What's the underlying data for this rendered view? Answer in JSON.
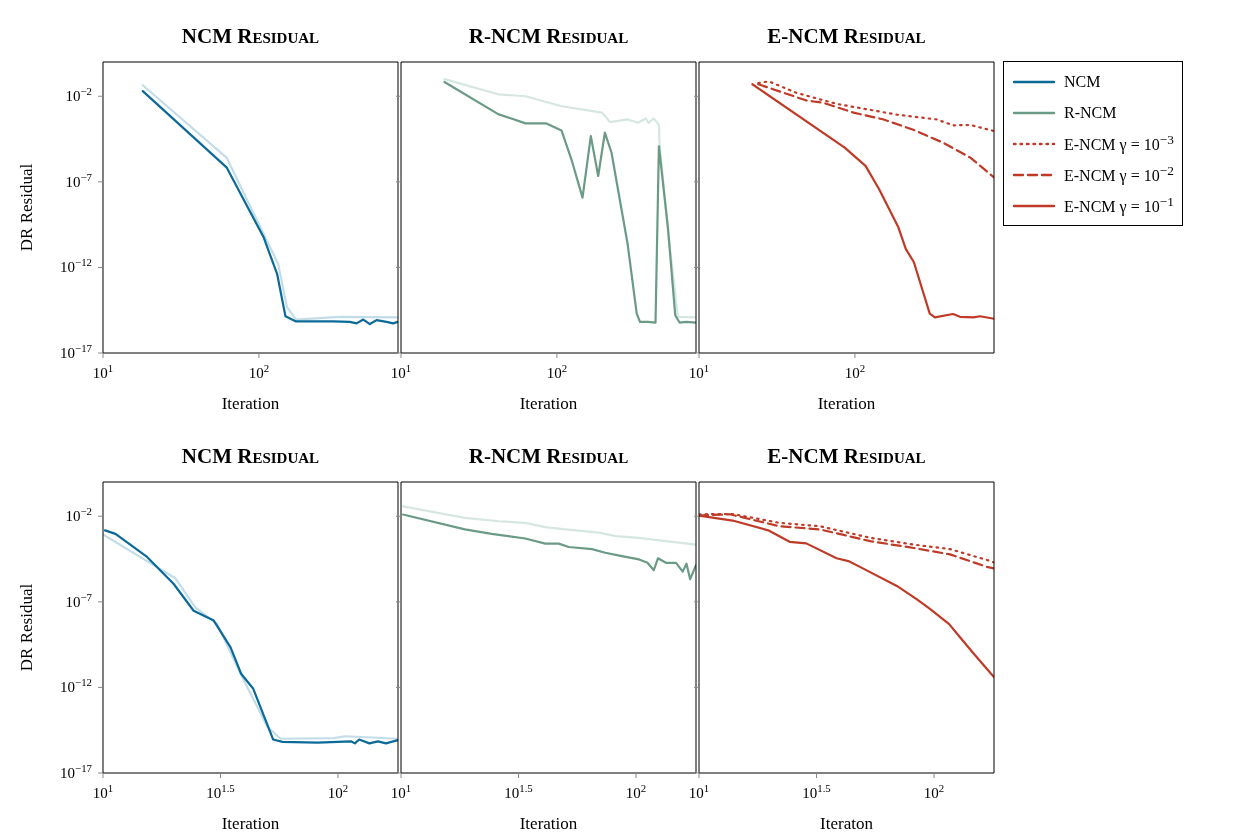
{
  "chart_data": [
    {
      "type": "line",
      "title": "NCM Residual",
      "xlabel": "Iteration",
      "ylabel": "DR Residual",
      "log": "xy",
      "legend": "right",
      "xlim": [
        10,
        780
      ],
      "ylim": [
        1e-17,
        1
      ],
      "xticks": [
        {
          "value": 10,
          "label": "10$^{1}$"
        },
        {
          "value": 100,
          "label": "10$^{2}$"
        }
      ],
      "yticks": [
        {
          "value": 1e-17,
          "label": "10$^{−17}$"
        },
        {
          "value": 1e-12,
          "label": "10$^{−12}$"
        },
        {
          "value": 1e-07,
          "label": "10$^{−7}$"
        },
        {
          "value": 0.01,
          "label": "10$^{−2}$"
        }
      ],
      "series": [
        {
          "color": "#c3dde8",
          "line_style": "solid",
          "x": [
            18,
            62,
            133,
            151,
            173,
            330,
            780
          ],
          "values": [
            0.044,
            2.6e-06,
            1.6e-12,
            5e-15,
            9e-16,
            1.3e-15,
            1.2e-15
          ]
        },
        {
          "name": "NCM",
          "color": "#0b6a97",
          "line_style": "solid",
          "x": [
            18,
            62,
            107,
            131,
            148,
            173,
            299,
            383,
            423,
            467,
            515,
            568,
            658,
            726,
            780
          ],
          "values": [
            0.02,
            7e-07,
            6e-11,
            4e-13,
            1.4e-15,
            7e-16,
            7e-16,
            6.6e-16,
            5.4e-16,
            9e-16,
            4.9e-16,
            8.3e-16,
            6.6e-16,
            5.4e-16,
            6.6e-16
          ]
        }
      ]
    },
    {
      "type": "line",
      "title": "R-NCM Residual",
      "xlabel": "Iteration",
      "log": "xy",
      "legend": "right",
      "tick_labels": "x",
      "xlim": [
        10,
        780
      ],
      "ylim": [
        1e-17,
        1
      ],
      "xticks": [
        {
          "value": 10,
          "label": "10$^{1}$"
        },
        {
          "value": 100,
          "label": "10$^{2}$"
        }
      ],
      "yticks": [
        {
          "value": 1e-17,
          "label": null
        },
        {
          "value": 1e-12,
          "label": null
        },
        {
          "value": 1e-07,
          "label": null
        },
        {
          "value": 0.01,
          "label": null
        }
      ],
      "series": [
        {
          "color": "#d6e6e0",
          "line_style": "solid",
          "x": [
            19,
            42,
            63,
            107,
            195,
            219,
            284,
            331,
            372,
            387,
            417,
            451,
            455,
            515,
            597,
            780
          ],
          "values": [
            0.1,
            0.013,
            0.01,
            0.0026,
            0.0011,
            0.00031,
            0.00044,
            0.00028,
            0.0005,
            0.00028,
            0.0005,
            0.00022,
            1.9e-05,
            1.5e-10,
            1.3e-15,
            1.2e-15
          ]
        },
        {
          "name": "R-NCM",
          "color": "#6b9a86",
          "line_style": "solid",
          "x": [
            19,
            42,
            63,
            85,
            107,
            124,
            146,
            165,
            184,
            203,
            224,
            284,
            325,
            341,
            383,
            429,
            451,
            515,
            574,
            612,
            677,
            780
          ],
          "values": [
            0.068,
            0.0009,
            0.00026,
            0.00026,
            0.0001,
            2e-06,
            1.2e-08,
            4.7e-05,
            2.2e-07,
            7.4e-05,
            5e-06,
            2.4e-11,
            2e-15,
            6.6e-16,
            6.6e-16,
            6e-16,
            1.2e-05,
            2.2e-10,
            1.6e-15,
            6e-16,
            6.6e-16,
            6e-16
          ]
        }
      ]
    },
    {
      "type": "line",
      "title": "E-NCM Residual",
      "xlabel": "Iteration",
      "log": "xy",
      "legend": "right",
      "tick_labels": "x",
      "xlim": [
        10,
        780
      ],
      "ylim": [
        1e-17,
        1
      ],
      "xticks": [
        {
          "value": 10,
          "label": "10$^{1}$"
        },
        {
          "value": 100,
          "label": "10$^{2}$"
        }
      ],
      "yticks": [
        {
          "value": 1e-17,
          "label": null
        },
        {
          "value": 1e-12,
          "label": null
        },
        {
          "value": 1e-07,
          "label": null
        },
        {
          "value": 0.01,
          "label": null
        }
      ],
      "series": [
        {
          "name": "E-NCM γ = 10$^{−3}$",
          "color": "#bf3a27",
          "line_style": "dotted",
          "x": [
            24,
            28,
            42,
            76,
            185,
            334,
            427,
            550,
            780
          ],
          "values": [
            0.059,
            0.074,
            0.016,
            0.0036,
            0.00085,
            0.00044,
            0.0002,
            0.00021,
            9.3e-05
          ]
        },
        {
          "name": "E-NCM γ = 10$^{−2}$",
          "color": "#bf3a27",
          "line_style": "dashed",
          "x": [
            24,
            49,
            63,
            98,
            151,
            237,
            369,
            550,
            780
          ],
          "values": [
            0.05,
            0.0056,
            0.0041,
            0.0011,
            0.00045,
            0.00011,
            1.9e-05,
            2.6e-06,
            1.8e-07
          ]
        },
        {
          "name": "E-NCM γ = 10$^{−1}$",
          "color": "#bf3a27",
          "line_style": "solid",
          "x": [
            22,
            86,
            117,
            143,
            190,
            212,
            239,
            302,
            326,
            426,
            472,
            575,
            635,
            780
          ],
          "values": [
            0.05,
            1e-05,
            8.5e-07,
            3.7e-08,
            2.2e-10,
            1.2e-11,
            2e-12,
            2e-15,
            1.2e-15,
            1.9e-15,
            1.3e-15,
            1.2e-15,
            1.4e-15,
            1e-15
          ]
        }
      ]
    },
    {
      "type": "line",
      "title": "NCM Residual",
      "xlabel": "Iteration",
      "ylabel": "DR Residual",
      "log": "xy",
      "xlim": [
        10,
        180
      ],
      "ylim": [
        1e-17,
        1
      ],
      "xticks": [
        {
          "value": 10,
          "label": "10$^{1}$"
        },
        {
          "value": 31.62,
          "label": "10$^{1.5}$"
        },
        {
          "value": 100,
          "label": "10$^{2}$"
        }
      ],
      "yticks": [
        {
          "value": 1e-17,
          "label": "10$^{−17}$"
        },
        {
          "value": 1e-12,
          "label": "10$^{−12}$"
        },
        {
          "value": 1e-07,
          "label": "10$^{−7}$"
        },
        {
          "value": 0.01,
          "label": "10$^{−2}$"
        }
      ],
      "series": [
        {
          "color": "#c3dde8",
          "line_style": "solid",
          "x": [
            10,
            15.4,
            20.3,
            24.7,
            30.6,
            38.5,
            50,
            57,
            96,
            107,
            180
          ],
          "values": [
            0.00085,
            2.4e-05,
            2.4e-06,
            4.7e-08,
            5e-09,
            6.3e-12,
            5e-15,
            1e-15,
            1.1e-15,
            1.4e-15,
            1e-15
          ]
        },
        {
          "color": "#0b6a97",
          "line_style": "solid",
          "x": [
            10.2,
            11.3,
            15.4,
            20,
            24.3,
            29.6,
            34.9,
            38.7,
            43.6,
            53,
            58,
            82,
            114,
            118,
            123,
            136,
            148,
            160,
            180
          ],
          "values": [
            0.0015,
            0.00093,
            4.2e-05,
            1.1e-06,
            3e-08,
            8e-09,
            2.2e-10,
            6.3e-12,
            8.3e-13,
            9e-16,
            6.6e-16,
            6e-16,
            7e-16,
            5.4e-16,
            9e-16,
            5.4e-16,
            7e-16,
            5.4e-16,
            8.3e-16
          ]
        }
      ]
    },
    {
      "type": "line",
      "title": "R-NCM Residual",
      "xlabel": "Iteration",
      "log": "xy",
      "tick_labels": "x",
      "xlim": [
        10,
        180
      ],
      "ylim": [
        1e-17,
        1
      ],
      "xticks": [
        {
          "value": 10,
          "label": "10$^{1}$"
        },
        {
          "value": 31.62,
          "label": "10$^{1.5}$"
        },
        {
          "value": 100,
          "label": "10$^{2}$"
        }
      ],
      "yticks": [
        {
          "value": 1e-17,
          "label": null
        },
        {
          "value": 1e-12,
          "label": null
        },
        {
          "value": 1e-07,
          "label": null
        },
        {
          "value": 0.01,
          "label": null
        }
      ],
      "series": [
        {
          "color": "#d6e6e0",
          "line_style": "solid",
          "x": [
            10.2,
            18.7,
            26,
            33.8,
            41.1,
            50,
            69.5,
            82,
            103,
            134,
            180
          ],
          "values": [
            0.038,
            0.008,
            0.0051,
            0.0041,
            0.0023,
            0.0017,
            0.0011,
            0.00069,
            0.00055,
            0.00035,
            0.00022
          ]
        },
        {
          "color": "#6b9a86",
          "line_style": "solid",
          "x": [
            10.2,
            18.7,
            24.3,
            33.8,
            41.1,
            46.9,
            51.7,
            65,
            74,
            87,
            103,
            112,
            119,
            124,
            134,
            148,
            158,
            164,
            170,
            180
          ],
          "values": [
            0.0126,
            0.0017,
            0.00093,
            0.0005,
            0.00025,
            0.00025,
            0.00016,
            0.00012,
            7.4e-05,
            4.7e-05,
            3e-05,
            1.9e-05,
            7e-06,
            3.5e-05,
            1.9e-05,
            1.9e-05,
            5.8e-06,
            1.7e-05,
            2.1e-06,
            1.4e-05
          ]
        }
      ]
    },
    {
      "type": "line",
      "title": "E-NCM Residual",
      "xlabel": "Iteraton",
      "log": "xy",
      "tick_labels": "x",
      "xlim": [
        10,
        180
      ],
      "ylim": [
        1e-17,
        1
      ],
      "xticks": [
        {
          "value": 10,
          "label": "10$^{1}$"
        },
        {
          "value": 31.62,
          "label": "10$^{1.5}$"
        },
        {
          "value": 100,
          "label": "10$^{2}$"
        }
      ],
      "yticks": [
        {
          "value": 1e-17,
          "label": null
        },
        {
          "value": 1e-12,
          "label": null
        },
        {
          "value": 1e-07,
          "label": null
        },
        {
          "value": 0.01,
          "label": null
        }
      ],
      "series": [
        {
          "color": "#bf3a27",
          "line_style": "dotted",
          "x": [
            10,
            13.9,
            22,
            32.7,
            53.5,
            82,
            117,
            174,
            180
          ],
          "values": [
            0.013,
            0.0135,
            0.0041,
            0.0026,
            0.00055,
            0.00022,
            0.00012,
            2.4e-05,
            2e-05
          ]
        },
        {
          "color": "#bf3a27",
          "line_style": "dashed",
          "x": [
            10,
            13.5,
            22,
            32.7,
            53.5,
            82,
            117,
            168,
            180
          ],
          "values": [
            0.011,
            0.013,
            0.0026,
            0.0017,
            0.00035,
            0.00014,
            5.9e-05,
            1.1e-05,
            9e-06
          ]
        },
        {
          "color": "#bf3a27",
          "line_style": "solid",
          "x": [
            10,
            13.9,
            19.7,
            24.3,
            28.6,
            38.5,
            43.2,
            48.4,
            69.5,
            84.6,
            96.4,
            116,
            129,
            148,
            168,
            180
          ],
          "values": [
            0.011,
            0.0056,
            0.0015,
            0.00032,
            0.00026,
            3.5e-05,
            2.4e-05,
            1.1e-05,
            8.5e-07,
            1.4e-07,
            3.8e-08,
            5e-09,
            8.5e-10,
            9e-11,
            1.2e-11,
            4e-12
          ]
        }
      ]
    }
  ]
}
